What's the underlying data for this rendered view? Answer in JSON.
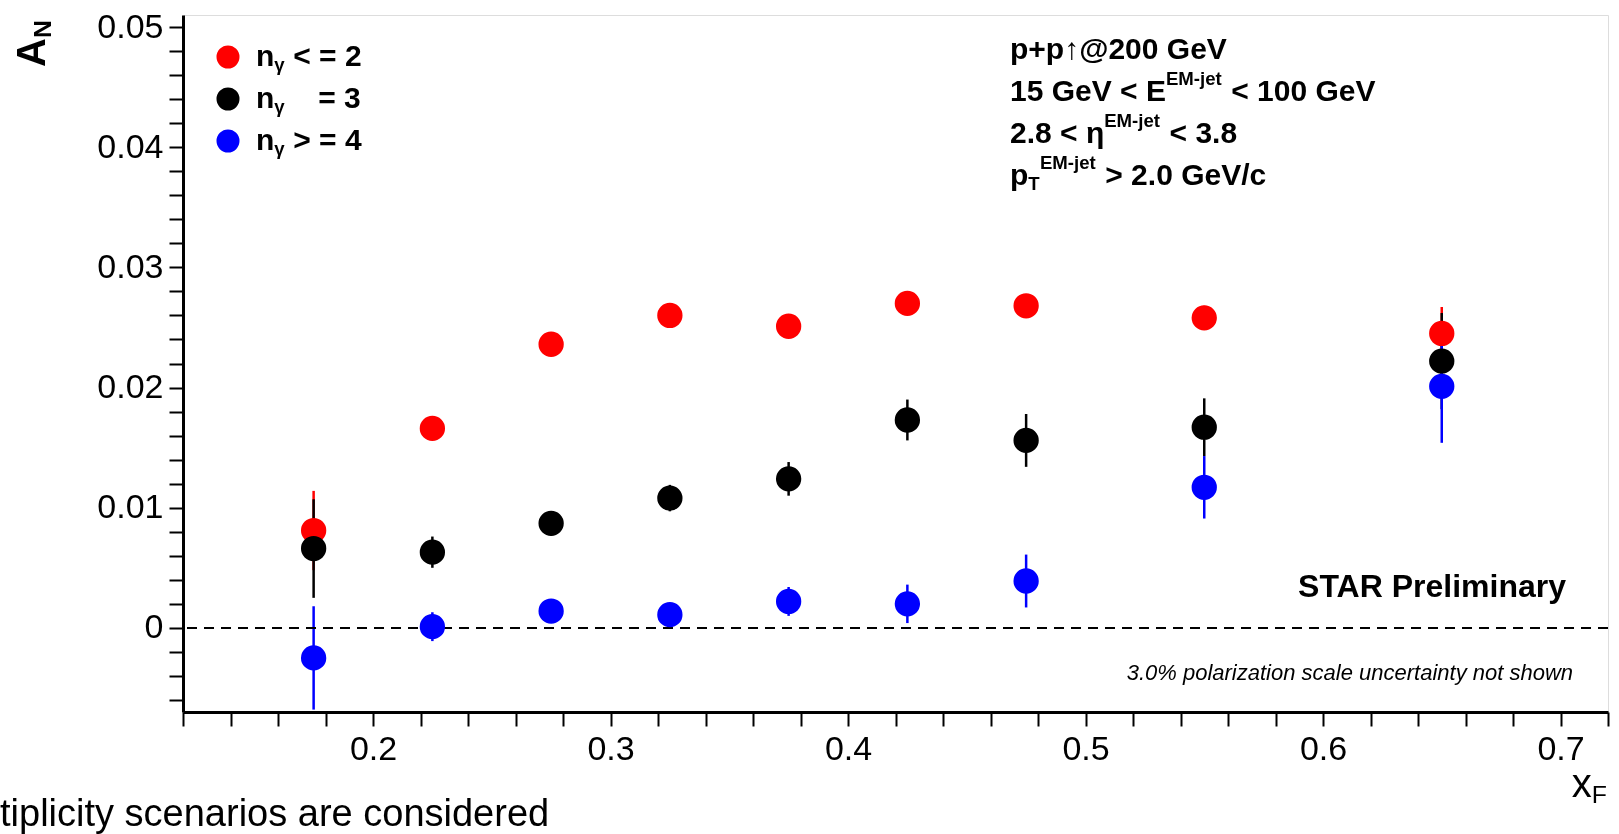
{
  "chart_data": {
    "type": "scatter",
    "xlabel": "x$_{F}$",
    "ylabel": "A$_{N}$",
    "x": [
      0.175,
      0.225,
      0.275,
      0.325,
      0.375,
      0.425,
      0.475,
      0.55,
      0.65
    ],
    "series": [
      {
        "name": "n$_{γ}$ < = 2",
        "color": "#ff0000",
        "values": [
          0.0081,
          0.0166,
          0.0236,
          0.026,
          0.0251,
          0.027,
          0.0268,
          0.0258,
          0.0245
        ],
        "errors": [
          0.0033,
          0.0005,
          0.0005,
          0.0005,
          0.0005,
          0.0006,
          0.0008,
          0.001,
          0.0022
        ]
      },
      {
        "name": "n$_{γ}$    = 3",
        "color": "#000000",
        "values": [
          0.0066,
          0.0063,
          0.0087,
          0.0108,
          0.0124,
          0.0173,
          0.0156,
          0.0167,
          0.0222
        ],
        "errors": [
          0.0041,
          0.0013,
          0.001,
          0.0011,
          0.0014,
          0.0017,
          0.0022,
          0.0024,
          0.004
        ]
      },
      {
        "name": "n$_{γ}$ > = 4",
        "color": "#0000ff",
        "values": [
          -0.0025,
          0.0001,
          0.0014,
          0.0011,
          0.0022,
          0.002,
          0.0039,
          0.0117,
          0.0201
        ],
        "errors": [
          0.0043,
          0.0012,
          0.0004,
          0.0004,
          0.0012,
          0.0016,
          0.0022,
          0.0026,
          0.0047
        ]
      }
    ],
    "marker": "circle",
    "legend": "top left",
    "grid": false,
    "xlim": [
      0.12,
      0.72
    ],
    "xticks": [
      {
        "value": 0.12,
        "label": null
      },
      {
        "value": 0.14,
        "label": null
      },
      {
        "value": 0.16,
        "label": null
      },
      {
        "value": 0.18,
        "label": null
      },
      0.2,
      {
        "value": 0.22,
        "label": null
      },
      {
        "value": 0.24,
        "label": null
      },
      {
        "value": 0.26,
        "label": null
      },
      {
        "value": 0.28,
        "label": null
      },
      0.3,
      {
        "value": 0.32,
        "label": null
      },
      {
        "value": 0.34,
        "label": null
      },
      {
        "value": 0.36,
        "label": null
      },
      {
        "value": 0.38,
        "label": null
      },
      0.4,
      {
        "value": 0.42,
        "label": null
      },
      {
        "value": 0.44,
        "label": null
      },
      {
        "value": 0.46,
        "label": null
      },
      {
        "value": 0.48,
        "label": null
      },
      0.5,
      {
        "value": 0.52,
        "label": null
      },
      {
        "value": 0.54,
        "label": null
      },
      {
        "value": 0.56,
        "label": null
      },
      {
        "value": 0.58,
        "label": null
      },
      0.6,
      {
        "value": 0.62,
        "label": null
      },
      {
        "value": 0.64,
        "label": null
      },
      {
        "value": 0.66,
        "label": null
      },
      {
        "value": 0.68,
        "label": null
      },
      0.7,
      {
        "value": 0.72,
        "label": null
      }
    ],
    "ylim": [
      -0.007,
      0.051
    ],
    "yticks": [
      {
        "value": -0.006,
        "label": null
      },
      {
        "value": -0.004,
        "label": null
      },
      {
        "value": -0.002,
        "label": null
      },
      0,
      {
        "value": 0.002,
        "label": null
      },
      {
        "value": 0.004,
        "label": null
      },
      {
        "value": 0.006,
        "label": null
      },
      {
        "value": 0.008,
        "label": null
      },
      0.01,
      {
        "value": 0.012,
        "label": null
      },
      {
        "value": 0.014,
        "label": null
      },
      {
        "value": 0.016,
        "label": null
      },
      {
        "value": 0.018,
        "label": null
      },
      0.02,
      {
        "value": 0.022,
        "label": null
      },
      {
        "value": 0.024,
        "label": null
      },
      {
        "value": 0.026,
        "label": null
      },
      {
        "value": 0.028,
        "label": null
      },
      0.03,
      {
        "value": 0.032,
        "label": null
      },
      {
        "value": 0.034,
        "label": null
      },
      {
        "value": 0.036,
        "label": null
      },
      {
        "value": 0.038,
        "label": null
      },
      0.04,
      {
        "value": 0.042,
        "label": null
      },
      {
        "value": 0.044,
        "label": null
      },
      {
        "value": 0.046,
        "label": null
      },
      {
        "value": 0.048,
        "label": null
      },
      0.05
    ],
    "ref_lines": [
      {
        "axis": "y",
        "value": 0,
        "color": "#000000",
        "line_style": "dashed"
      }
    ],
    "annotations": [
      "p+p↑@200 GeV",
      "15 GeV < E$^{EM-jet}$ < 100 GeV",
      "2.8 < η$^{EM-jet}$ < 3.8",
      "p$_{T}$$^{EM-jet}$ > 2.0 GeV/c",
      "STAR Preliminary",
      "3.0% polarization scale uncertainty not shown",
      "tiplicity scenarios are considered"
    ]
  }
}
